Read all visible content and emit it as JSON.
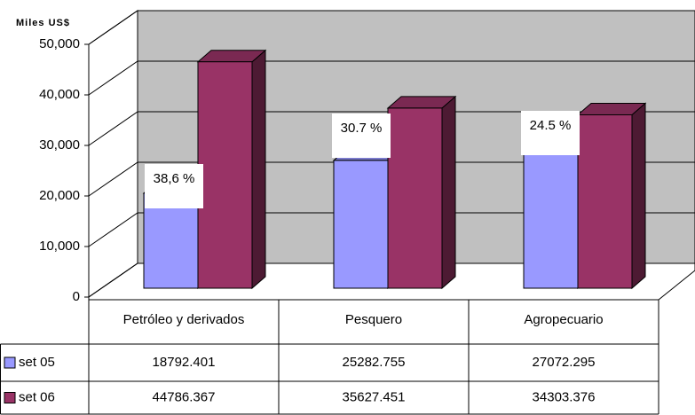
{
  "chart_data": {
    "type": "bar3d",
    "y_label": "Miles US$",
    "categories": [
      "Petróleo y derivados",
      "Pesquero",
      "Agropecuario"
    ],
    "series": [
      {
        "name": "set 05",
        "color": "#9999ff",
        "values": [
          18792.401,
          25282.755,
          27072.295
        ]
      },
      {
        "name": "set 06",
        "color": "#993366",
        "values": [
          44786.367,
          35627.451,
          34303.376
        ]
      }
    ],
    "annotations": [
      "38,6 %",
      "30.7 %",
      "24.5 %"
    ],
    "ylim": [
      0,
      50000
    ],
    "yticks": [
      0,
      {
        "value": 10000,
        "label": "10,000"
      },
      {
        "value": 20000,
        "label": "20,000"
      },
      {
        "value": 30000,
        "label": "30,000"
      },
      {
        "value": 40000,
        "label": "40,000"
      },
      {
        "value": 50000,
        "label": "50,000"
      }
    ],
    "grid": true
  }
}
